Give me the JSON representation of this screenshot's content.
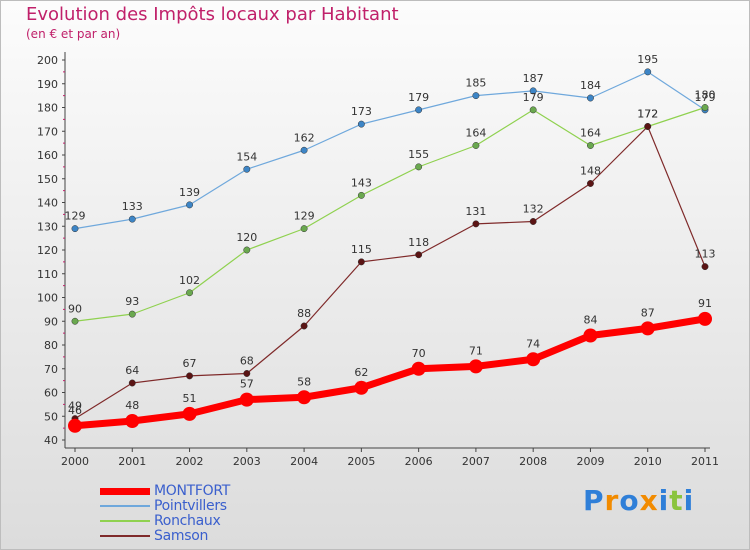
{
  "header": {
    "title": "Evolution des Impôts locaux par Habitant",
    "subtitle": "(en € et par an)"
  },
  "logo": {
    "letters": [
      "P",
      "r",
      "o",
      "x",
      "i",
      "t",
      "i"
    ],
    "colors": [
      "#2f7fd8",
      "#f28b00",
      "#2f7fd8",
      "#f28b00",
      "#2f7fd8",
      "#8ac43f",
      "#2f7fd8"
    ]
  },
  "chart_data": {
    "type": "line",
    "x": [
      "2000",
      "2001",
      "2002",
      "2003",
      "2004",
      "2005",
      "2006",
      "2007",
      "2008",
      "2009",
      "2010",
      "2011"
    ],
    "ylim": [
      40,
      200
    ],
    "yticks": [
      40,
      50,
      60,
      70,
      80,
      90,
      100,
      110,
      120,
      130,
      140,
      150,
      160,
      170,
      180,
      190,
      200
    ],
    "grid": false,
    "legend_position": "bottom-left",
    "series": [
      {
        "name": "Pointvillers",
        "color": "#6fa8dc",
        "marker": "#3d85c6",
        "values": [
          129,
          133,
          139,
          154,
          162,
          173,
          179,
          185,
          187,
          184,
          195,
          179
        ]
      },
      {
        "name": "Ronchaux",
        "color": "#8fd14f",
        "marker": "#6aa84f",
        "values": [
          90,
          93,
          102,
          120,
          129,
          143,
          155,
          164,
          179,
          164,
          172,
          180
        ]
      },
      {
        "name": "Samson",
        "color": "#7f2a2a",
        "marker": "#5b1414",
        "values": [
          49,
          64,
          67,
          68,
          88,
          115,
          118,
          131,
          132,
          148,
          172,
          113
        ]
      },
      {
        "name": "MONTFORT",
        "color": "#ff0000",
        "marker": "#ff0000",
        "values": [
          46,
          48,
          51,
          57,
          58,
          62,
          70,
          71,
          74,
          84,
          87,
          91
        ]
      }
    ],
    "legend": [
      {
        "name": "MONTFORT",
        "color": "#ff0000",
        "thick": true
      },
      {
        "name": "Pointvillers",
        "color": "#6fa8dc",
        "thick": false
      },
      {
        "name": "Ronchaux",
        "color": "#8fd14f",
        "thick": false
      },
      {
        "name": "Samson",
        "color": "#7f2a2a",
        "thick": false
      }
    ]
  }
}
